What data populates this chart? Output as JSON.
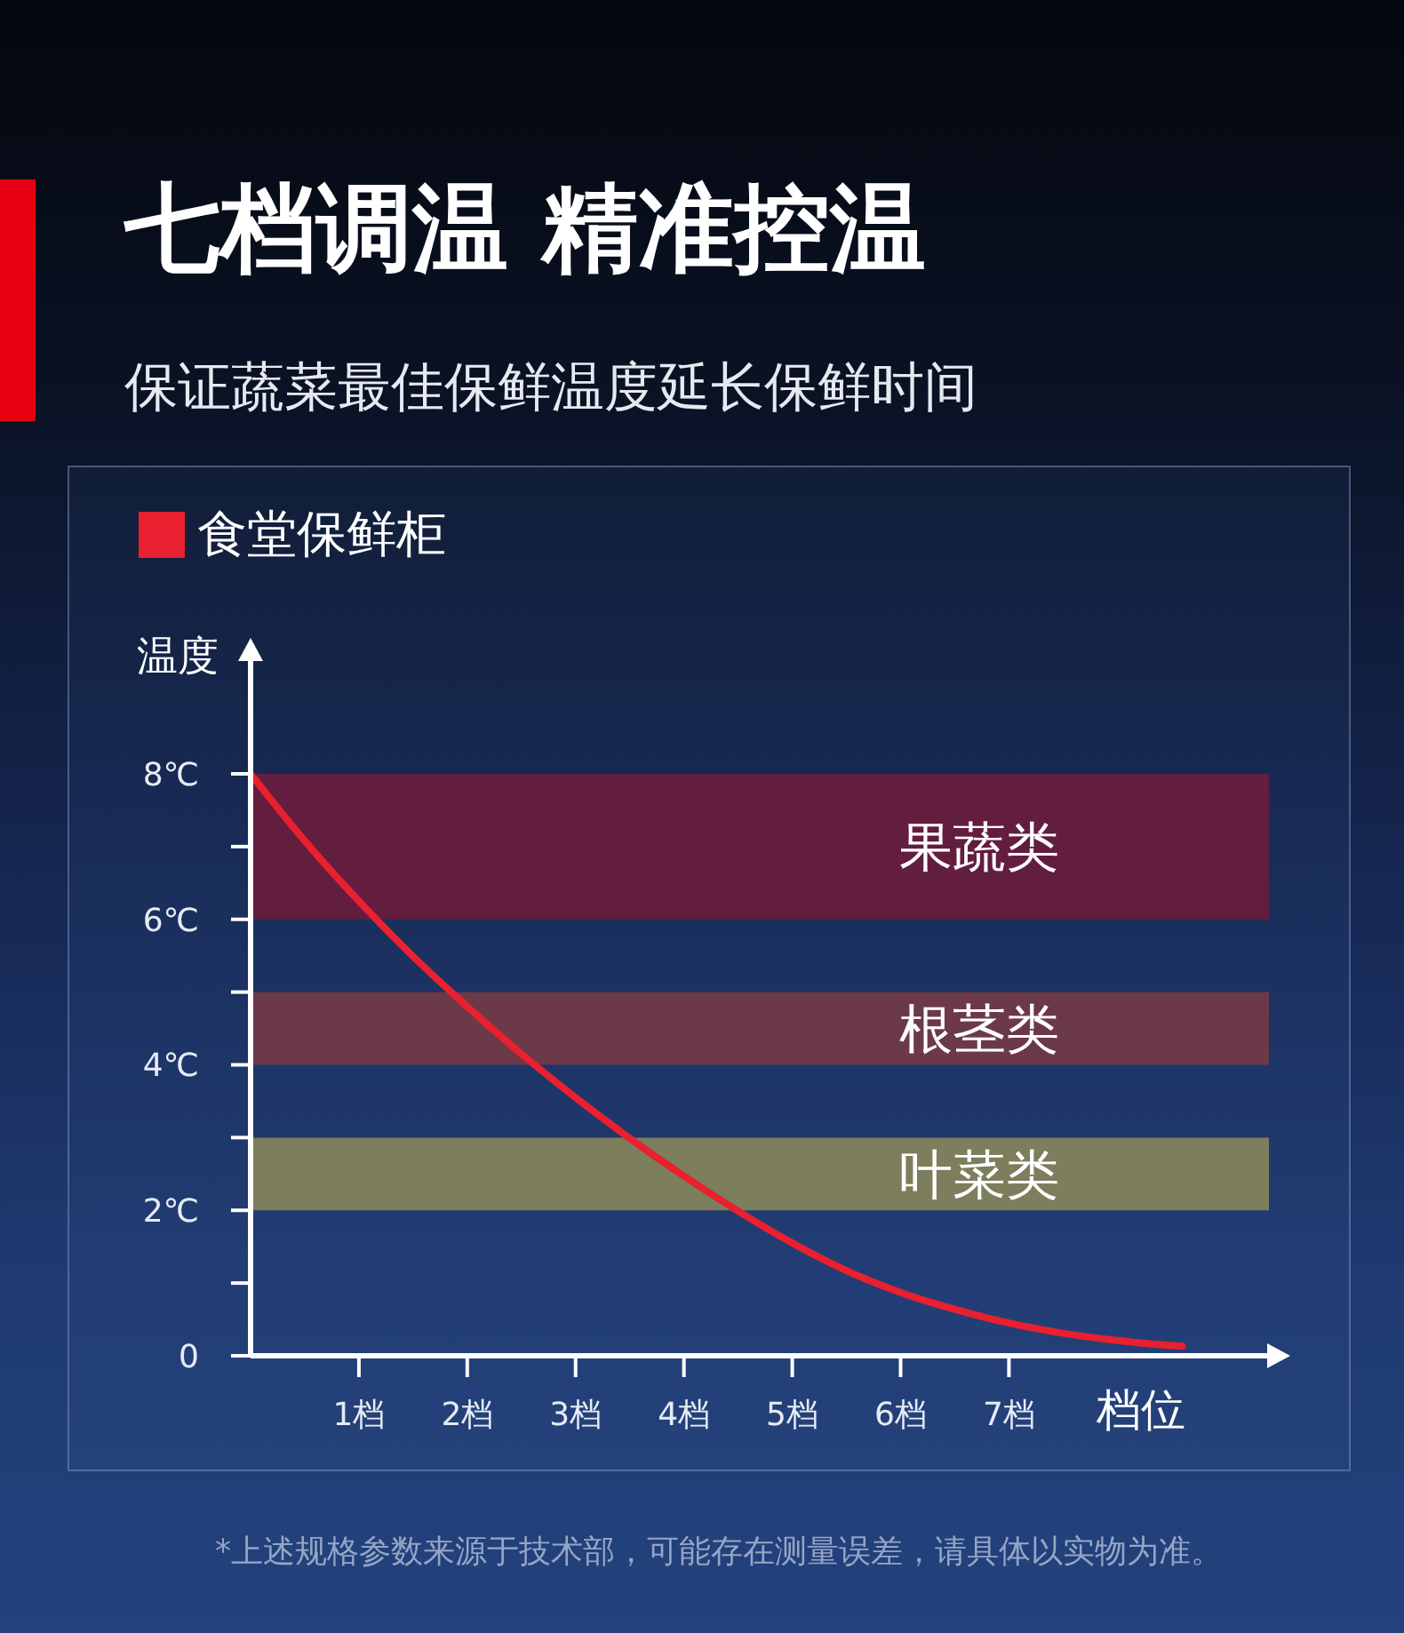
{
  "chart_data": {
    "type": "line",
    "title": "七档调温 精准控温",
    "subtitle": "保证蔬菜最佳保鲜温度延长保鲜时间",
    "xlabel": "档位",
    "ylabel": "温度",
    "x": [
      0,
      0.5,
      1,
      1.5,
      2,
      2.5,
      3,
      3.5,
      4,
      4.5,
      5,
      5.5,
      6,
      6.5,
      7,
      7.5,
      8,
      8.6
    ],
    "series": [
      {
        "name": "食堂保鲜柜",
        "color": "#e8202f",
        "values": [
          8.0,
          7.08,
          6.25,
          5.49,
          4.8,
          4.15,
          3.55,
          2.99,
          2.47,
          1.99,
          1.55,
          1.17,
          0.87,
          0.64,
          0.45,
          0.31,
          0.21,
          0.13
        ]
      }
    ],
    "xlim": [
      0,
      9.4
    ],
    "xticks": [
      {
        "value": 1,
        "label": "1档"
      },
      {
        "value": 2,
        "label": "2档"
      },
      {
        "value": 3,
        "label": "3档"
      },
      {
        "value": 4,
        "label": "4档"
      },
      {
        "value": 5,
        "label": "5档"
      },
      {
        "value": 6,
        "label": "6档"
      },
      {
        "value": 7,
        "label": "7档"
      }
    ],
    "ylim": [
      0,
      9.6
    ],
    "yticks": [
      0,
      {
        "value": 1,
        "label": null
      },
      {
        "value": 2,
        "label": "2℃"
      },
      {
        "value": 3,
        "label": null
      },
      {
        "value": 4,
        "label": "4℃"
      },
      {
        "value": 5,
        "label": null
      },
      {
        "value": 6,
        "label": "6℃"
      },
      {
        "value": 7,
        "label": null
      },
      {
        "value": 8,
        "label": "8℃"
      }
    ],
    "bands": [
      {
        "axis": "y",
        "from": 6,
        "to": 8,
        "label": "果蔬类",
        "color": "#6b1c3c"
      },
      {
        "axis": "y",
        "from": 4,
        "to": 5,
        "label": "根茎类",
        "color": "#763a45"
      },
      {
        "axis": "y",
        "from": 2,
        "to": 3,
        "label": "叶菜类",
        "color": "#86865a"
      }
    ],
    "legend": "top left",
    "marker": "none",
    "line_style": "solid",
    "annotations": [
      "*上述规格参数来源于技术部，可能存在测量误差，请具体以实物为准。"
    ]
  }
}
